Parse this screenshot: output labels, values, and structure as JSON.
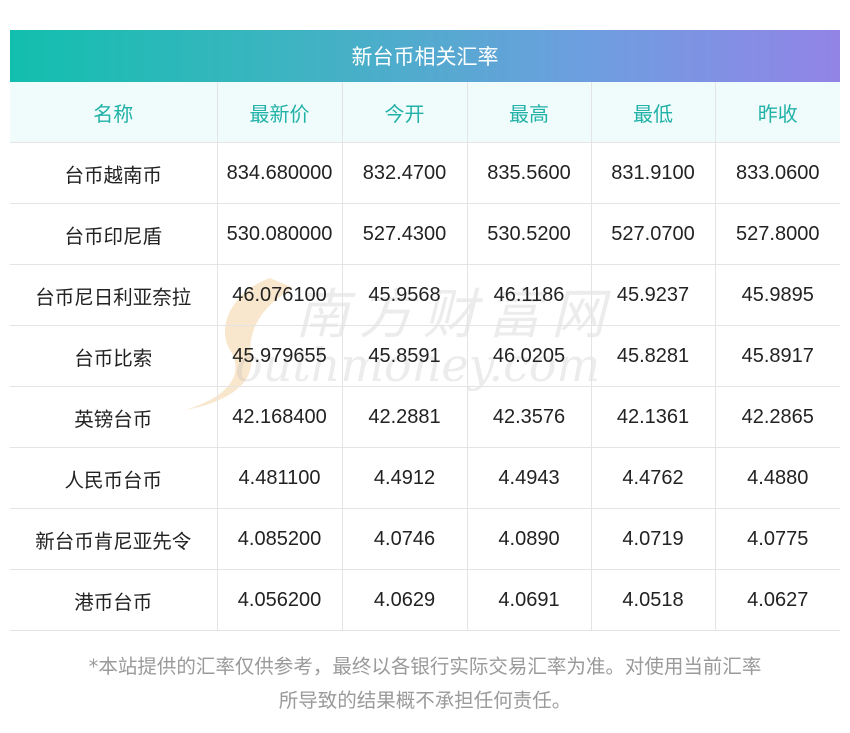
{
  "title": "新台币相关汇率",
  "columns": [
    "名称",
    "最新价",
    "今开",
    "最高",
    "最低",
    "昨收"
  ],
  "rows": [
    {
      "name": "台币越南币",
      "latest": "834.680000",
      "open": "832.4700",
      "high": "835.5600",
      "low": "831.9100",
      "prev_close": "833.0600"
    },
    {
      "name": "台币印尼盾",
      "latest": "530.080000",
      "open": "527.4300",
      "high": "530.5200",
      "low": "527.0700",
      "prev_close": "527.8000"
    },
    {
      "name": "台币尼日利亚奈拉",
      "latest": "46.076100",
      "open": "45.9568",
      "high": "46.1186",
      "low": "45.9237",
      "prev_close": "45.9895"
    },
    {
      "name": "台币比索",
      "latest": "45.979655",
      "open": "45.8591",
      "high": "46.0205",
      "low": "45.8281",
      "prev_close": "45.8917"
    },
    {
      "name": "英镑台币",
      "latest": "42.168400",
      "open": "42.2881",
      "high": "42.3576",
      "low": "42.1361",
      "prev_close": "42.2865"
    },
    {
      "name": "人民币台币",
      "latest": "4.481100",
      "open": "4.4912",
      "high": "4.4943",
      "low": "4.4762",
      "prev_close": "4.4880"
    },
    {
      "name": "新台币肯尼亚先令",
      "latest": "4.085200",
      "open": "4.0746",
      "high": "4.0890",
      "low": "4.0719",
      "prev_close": "4.0775"
    },
    {
      "name": "港币台币",
      "latest": "4.056200",
      "open": "4.0629",
      "high": "4.0691",
      "low": "4.0518",
      "prev_close": "4.0627"
    }
  ],
  "watermark": {
    "cn": "南方财富网",
    "en": "outhmoney.com"
  },
  "disclaimer": {
    "line1": "*本站提供的汇率仅供参考，最终以各银行实际交易汇率为准。对使用当前汇率",
    "line2": "所导致的结果概不承担任何责任。"
  },
  "colors": {
    "header_text": "#22b1a7",
    "header_bg": "#effcfb",
    "title_gradient_start": "#12bfae",
    "title_gradient_end": "#9284e6",
    "watermark_swoosh": "#f7ddb8"
  }
}
